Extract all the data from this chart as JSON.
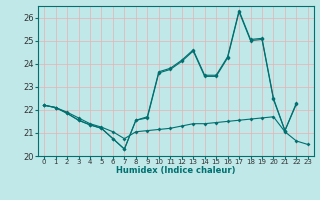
{
  "xlabel": "Humidex (Indice chaleur)",
  "background_color": "#c0e8e8",
  "grid_color": "#e8b0b0",
  "line_color": "#007070",
  "xlim": [
    -0.5,
    23.5
  ],
  "ylim": [
    20.0,
    26.5
  ],
  "yticks": [
    20,
    21,
    22,
    23,
    24,
    25,
    26
  ],
  "xticks": [
    0,
    1,
    2,
    3,
    4,
    5,
    6,
    7,
    8,
    9,
    10,
    11,
    12,
    13,
    14,
    15,
    16,
    17,
    18,
    19,
    20,
    21,
    22,
    23
  ],
  "line1_x": [
    0,
    1,
    2,
    3,
    4,
    5,
    6,
    7,
    8,
    9,
    10,
    11,
    12,
    13,
    14,
    15,
    16,
    17,
    18,
    19,
    20,
    21,
    22,
    23
  ],
  "line1_y": [
    22.2,
    22.1,
    21.9,
    21.65,
    21.4,
    21.25,
    21.05,
    20.75,
    21.05,
    21.1,
    21.15,
    21.2,
    21.3,
    21.4,
    21.4,
    21.45,
    21.5,
    21.55,
    21.6,
    21.65,
    21.7,
    21.05,
    20.65,
    20.5
  ],
  "line2_x": [
    0,
    1,
    2,
    3,
    4,
    5,
    6,
    7,
    8,
    9,
    10,
    11,
    12,
    13,
    14,
    15,
    16,
    17,
    18,
    19,
    20,
    21,
    22
  ],
  "line2_y": [
    22.2,
    22.1,
    21.85,
    21.55,
    21.35,
    21.2,
    20.75,
    20.3,
    21.55,
    21.7,
    23.65,
    23.8,
    24.15,
    24.6,
    23.5,
    23.5,
    24.3,
    26.3,
    25.05,
    25.1,
    22.5,
    21.1,
    22.3
  ],
  "line3_x": [
    0,
    1,
    2,
    3,
    4,
    5,
    6,
    7,
    8,
    9,
    10,
    11,
    12,
    13,
    14,
    15,
    16,
    17,
    18,
    19,
    20,
    21,
    22
  ],
  "line3_y": [
    22.2,
    22.1,
    21.85,
    21.55,
    21.35,
    21.2,
    20.75,
    20.3,
    21.55,
    21.65,
    23.6,
    23.75,
    24.1,
    24.55,
    23.45,
    23.45,
    24.25,
    26.25,
    25.0,
    25.05,
    22.45,
    21.1,
    22.25
  ]
}
